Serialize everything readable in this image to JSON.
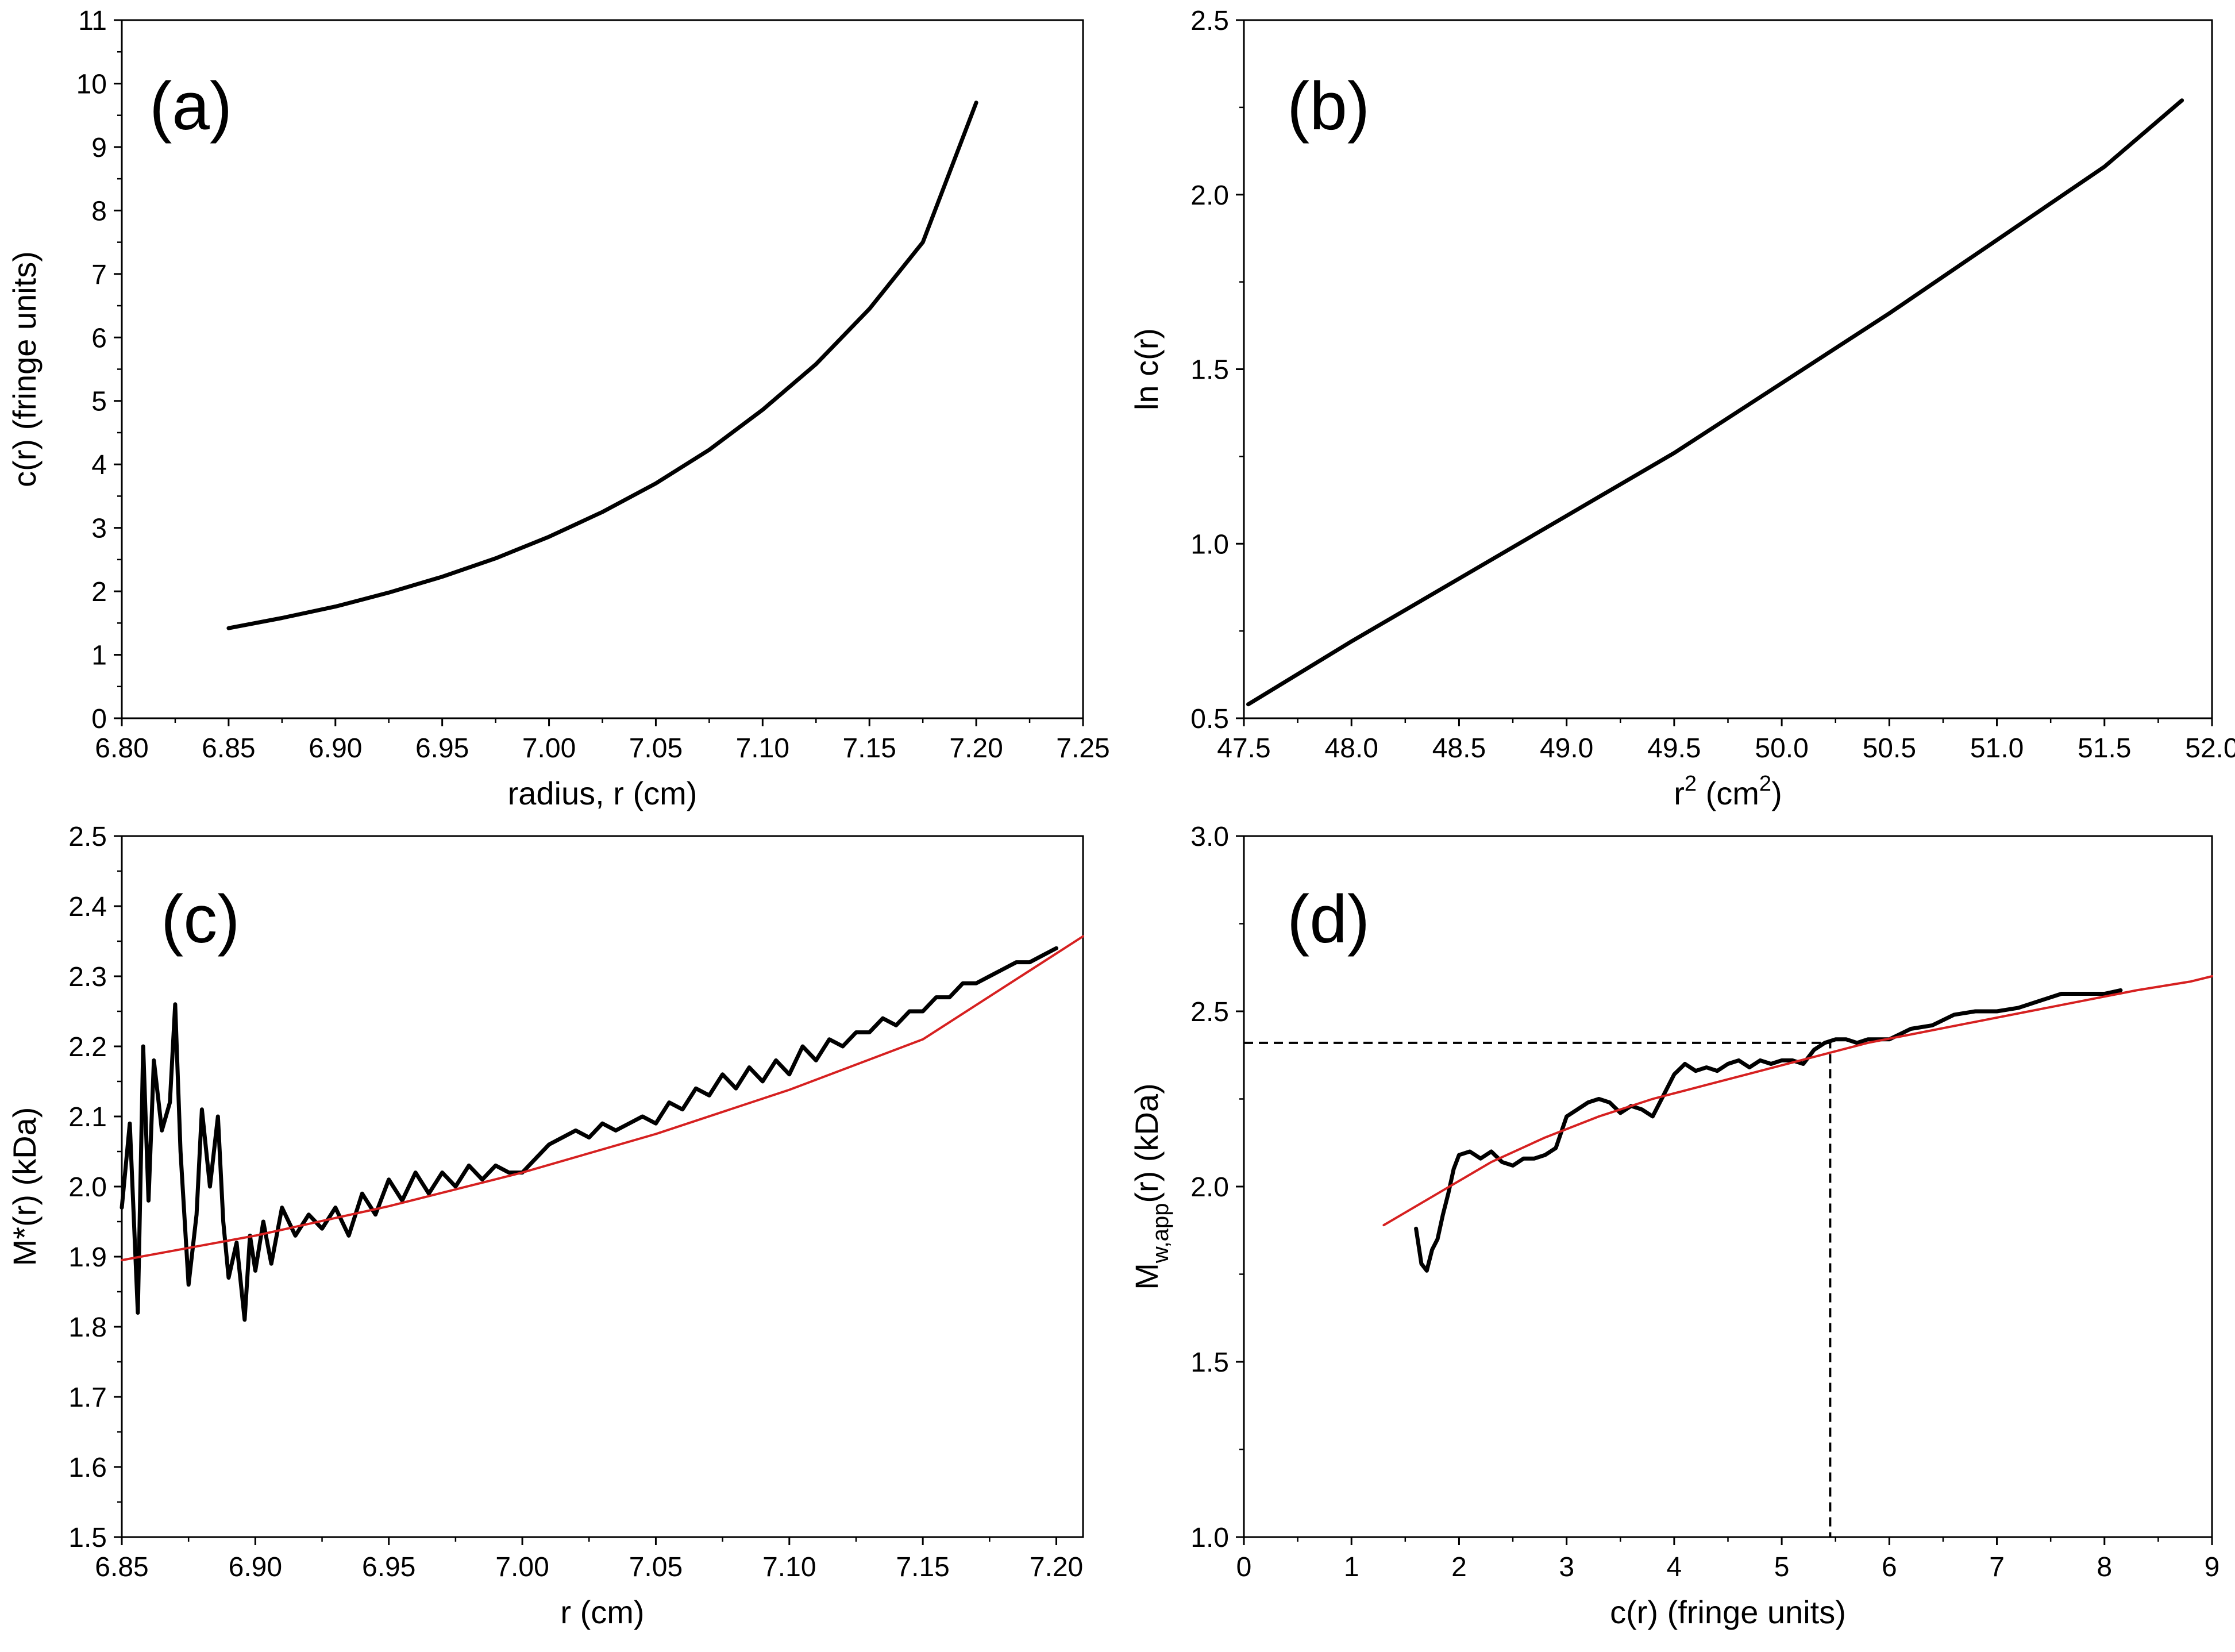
{
  "figure": {
    "colors": {
      "data_line": "#000000",
      "fit_line": "#d62020",
      "guide_line": "#000000"
    }
  },
  "chart_data": [
    {
      "id": "a",
      "type": "line",
      "panel_label": "(a)",
      "xlabel": "radius, r (cm)",
      "ylabel": "c(r) (fringe units)",
      "xlim": [
        6.8,
        7.25
      ],
      "ylim": [
        0,
        11
      ],
      "xticks": [
        "6.80",
        "6.85",
        "6.90",
        "6.95",
        "7.00",
        "7.05",
        "7.10",
        "7.15",
        "7.20",
        "7.25"
      ],
      "yticks": [
        "0",
        "1",
        "2",
        "3",
        "4",
        "5",
        "6",
        "7",
        "8",
        "9",
        "10",
        "11"
      ],
      "series": [
        {
          "name": "c(r)",
          "style": "data",
          "x": [
            6.85,
            6.875,
            6.9,
            6.925,
            6.95,
            6.975,
            7.0,
            7.025,
            7.05,
            7.075,
            7.1,
            7.125,
            7.15,
            7.175,
            7.2
          ],
          "y": [
            1.42,
            1.58,
            1.76,
            1.98,
            2.23,
            2.52,
            2.86,
            3.25,
            3.7,
            4.23,
            4.86,
            5.58,
            6.45,
            7.5,
            9.7
          ]
        }
      ]
    },
    {
      "id": "b",
      "type": "line",
      "panel_label": "(b)",
      "xlabel_main": "r",
      "xlabel_sup": "2",
      "xlabel_rest": " (cm",
      "xlabel_sup2": "2",
      "xlabel_end": ")",
      "ylabel": "ln c(r)",
      "xlim": [
        47.5,
        52.0
      ],
      "ylim": [
        0.5,
        2.5
      ],
      "xticks": [
        "47.5",
        "48.0",
        "48.5",
        "49.0",
        "49.5",
        "50.0",
        "50.5",
        "51.0",
        "51.5",
        "52.0"
      ],
      "yticks": [
        "0.5",
        "1.0",
        "1.5",
        "2.0",
        "2.5"
      ],
      "series": [
        {
          "name": "ln c(r)",
          "style": "data",
          "x": [
            47.52,
            48.0,
            48.5,
            49.0,
            49.5,
            50.0,
            50.5,
            51.0,
            51.5,
            51.86
          ],
          "y": [
            0.54,
            0.72,
            0.9,
            1.08,
            1.26,
            1.46,
            1.66,
            1.87,
            2.08,
            2.27
          ]
        }
      ]
    },
    {
      "id": "c",
      "type": "line",
      "panel_label": "(c)",
      "xlabel": "r (cm)",
      "ylabel": "M*(r) (kDa)",
      "xlim": [
        6.85,
        7.21
      ],
      "ylim": [
        1.5,
        2.5
      ],
      "xticks": [
        "6.85",
        "6.90",
        "6.95",
        "7.00",
        "7.05",
        "7.10",
        "7.15",
        "7.20"
      ],
      "yticks": [
        "1.5",
        "1.6",
        "1.7",
        "1.8",
        "1.9",
        "2.0",
        "2.1",
        "2.2",
        "2.3",
        "2.4",
        "2.5"
      ],
      "series": [
        {
          "name": "M*(r)",
          "style": "data",
          "x": [
            6.85,
            6.853,
            6.856,
            6.858,
            6.86,
            6.862,
            6.865,
            6.868,
            6.87,
            6.872,
            6.875,
            6.878,
            6.88,
            6.883,
            6.886,
            6.888,
            6.89,
            6.893,
            6.896,
            6.898,
            6.9,
            6.903,
            6.906,
            6.91,
            6.915,
            6.92,
            6.925,
            6.93,
            6.935,
            6.94,
            6.945,
            6.95,
            6.955,
            6.96,
            6.965,
            6.97,
            6.975,
            6.98,
            6.985,
            6.99,
            6.995,
            7.0,
            7.005,
            7.01,
            7.015,
            7.02,
            7.025,
            7.03,
            7.035,
            7.04,
            7.045,
            7.05,
            7.055,
            7.06,
            7.065,
            7.07,
            7.075,
            7.08,
            7.085,
            7.09,
            7.095,
            7.1,
            7.105,
            7.11,
            7.115,
            7.12,
            7.125,
            7.13,
            7.135,
            7.14,
            7.145,
            7.15,
            7.155,
            7.16,
            7.165,
            7.17,
            7.175,
            7.18,
            7.185,
            7.19,
            7.195,
            7.2
          ],
          "y": [
            1.97,
            2.09,
            1.82,
            2.2,
            1.98,
            2.18,
            2.08,
            2.12,
            2.26,
            2.05,
            1.86,
            1.96,
            2.11,
            2.0,
            2.1,
            1.95,
            1.87,
            1.92,
            1.81,
            1.93,
            1.88,
            1.95,
            1.89,
            1.97,
            1.93,
            1.96,
            1.94,
            1.97,
            1.93,
            1.99,
            1.96,
            2.01,
            1.98,
            2.02,
            1.99,
            2.02,
            2.0,
            2.03,
            2.01,
            2.03,
            2.02,
            2.02,
            2.04,
            2.06,
            2.07,
            2.08,
            2.07,
            2.09,
            2.08,
            2.09,
            2.1,
            2.09,
            2.12,
            2.11,
            2.14,
            2.13,
            2.16,
            2.14,
            2.17,
            2.15,
            2.18,
            2.16,
            2.2,
            2.18,
            2.21,
            2.2,
            2.22,
            2.22,
            2.24,
            2.23,
            2.25,
            2.25,
            2.27,
            2.27,
            2.29,
            2.29,
            2.3,
            2.31,
            2.32,
            2.32,
            2.33,
            2.34
          ]
        },
        {
          "name": "fit",
          "style": "fit",
          "x": [
            6.85,
            6.9,
            6.95,
            7.0,
            7.05,
            7.1,
            7.15,
            7.21
          ],
          "y": [
            1.895,
            1.93,
            1.972,
            2.02,
            2.075,
            2.138,
            2.21,
            2.357
          ]
        }
      ]
    },
    {
      "id": "d",
      "type": "line",
      "panel_label": "(d)",
      "xlabel": "c(r) (fringe units)",
      "ylabel_main": "M",
      "ylabel_sub": "w,app",
      "ylabel_rest": "(r) (kDa)",
      "xlim": [
        0,
        9
      ],
      "ylim": [
        1.0,
        3.0
      ],
      "xticks": [
        "0",
        "1",
        "2",
        "3",
        "4",
        "5",
        "6",
        "7",
        "8",
        "9"
      ],
      "yticks": [
        "1.0",
        "1.5",
        "2.0",
        "2.5",
        "3.0"
      ],
      "guide": {
        "x": 5.45,
        "y": 2.41
      },
      "series": [
        {
          "name": "Mw,app(r)",
          "style": "data",
          "x": [
            1.6,
            1.65,
            1.7,
            1.75,
            1.8,
            1.85,
            1.9,
            1.95,
            2.0,
            2.1,
            2.2,
            2.3,
            2.4,
            2.5,
            2.6,
            2.7,
            2.8,
            2.9,
            3.0,
            3.1,
            3.2,
            3.3,
            3.4,
            3.5,
            3.6,
            3.7,
            3.8,
            3.9,
            4.0,
            4.1,
            4.2,
            4.3,
            4.4,
            4.5,
            4.6,
            4.7,
            4.8,
            4.9,
            5.0,
            5.1,
            5.2,
            5.3,
            5.4,
            5.5,
            5.6,
            5.7,
            5.8,
            5.9,
            6.0,
            6.2,
            6.4,
            6.6,
            6.8,
            7.0,
            7.2,
            7.4,
            7.6,
            7.8,
            8.0,
            8.15
          ],
          "y": [
            1.88,
            1.78,
            1.76,
            1.82,
            1.85,
            1.92,
            1.98,
            2.05,
            2.09,
            2.1,
            2.08,
            2.1,
            2.07,
            2.06,
            2.08,
            2.08,
            2.09,
            2.11,
            2.2,
            2.22,
            2.24,
            2.25,
            2.24,
            2.21,
            2.23,
            2.22,
            2.2,
            2.26,
            2.32,
            2.35,
            2.33,
            2.34,
            2.33,
            2.35,
            2.36,
            2.34,
            2.36,
            2.35,
            2.36,
            2.36,
            2.35,
            2.39,
            2.41,
            2.42,
            2.42,
            2.41,
            2.42,
            2.42,
            2.42,
            2.45,
            2.46,
            2.49,
            2.5,
            2.5,
            2.51,
            2.53,
            2.55,
            2.55,
            2.55,
            2.56
          ]
        },
        {
          "name": "fit",
          "style": "fit",
          "x": [
            1.3,
            1.8,
            2.3,
            2.8,
            3.3,
            3.8,
            4.3,
            4.8,
            5.3,
            5.8,
            6.3,
            6.8,
            7.3,
            7.8,
            8.3,
            8.8,
            9.0
          ],
          "y": [
            1.89,
            1.98,
            2.07,
            2.14,
            2.2,
            2.25,
            2.29,
            2.33,
            2.37,
            2.41,
            2.44,
            2.47,
            2.5,
            2.53,
            2.56,
            2.585,
            2.6
          ]
        }
      ]
    }
  ]
}
